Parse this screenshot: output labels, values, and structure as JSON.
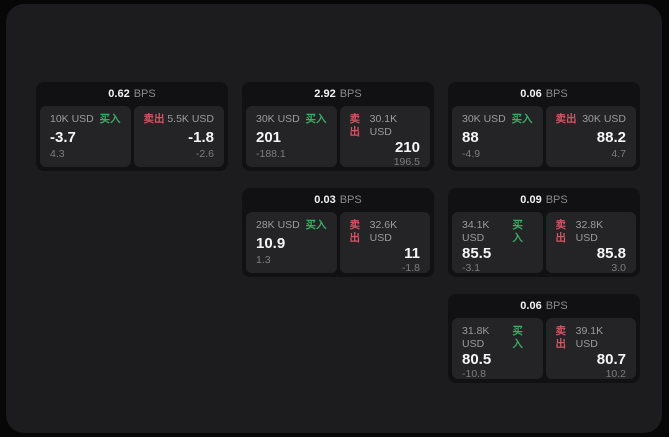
{
  "labels": {
    "bps": "BPS",
    "buy": "买入",
    "sell": "卖出"
  },
  "colors": {
    "buy": "#3cab63",
    "sell": "#d25563",
    "window_bg": "#1c1c1e",
    "card_bg": "#111113",
    "panel_bg": "#242427"
  },
  "cards": [
    {
      "row": 1,
      "col": 1,
      "bps": "0.62",
      "buy": {
        "amount": "10K USD",
        "price": "-3.7",
        "delta": "4.3"
      },
      "sell": {
        "amount": "5.5K USD",
        "price": "-1.8",
        "delta": "-2.6"
      }
    },
    {
      "row": 1,
      "col": 2,
      "bps": "2.92",
      "buy": {
        "amount": "30K USD",
        "price": "201",
        "delta": "-188.1"
      },
      "sell": {
        "amount": "30.1K USD",
        "price": "210",
        "delta": "196.5"
      }
    },
    {
      "row": 1,
      "col": 3,
      "bps": "0.06",
      "buy": {
        "amount": "30K USD",
        "price": "88",
        "delta": "-4.9"
      },
      "sell": {
        "amount": "30K USD",
        "price": "88.2",
        "delta": "4.7"
      }
    },
    {
      "row": 2,
      "col": 2,
      "bps": "0.03",
      "buy": {
        "amount": "28K USD",
        "price": "10.9",
        "delta": "1.3"
      },
      "sell": {
        "amount": "32.6K USD",
        "price": "11",
        "delta": "-1.8"
      }
    },
    {
      "row": 2,
      "col": 3,
      "bps": "0.09",
      "buy": {
        "amount": "34.1K USD",
        "price": "85.5",
        "delta": "-3.1"
      },
      "sell": {
        "amount": "32.8K USD",
        "price": "85.8",
        "delta": "3.0"
      }
    },
    {
      "row": 3,
      "col": 3,
      "bps": "0.06",
      "buy": {
        "amount": "31.8K USD",
        "price": "80.5",
        "delta": "-10.8"
      },
      "sell": {
        "amount": "39.1K USD",
        "price": "80.7",
        "delta": "10.2"
      }
    }
  ]
}
